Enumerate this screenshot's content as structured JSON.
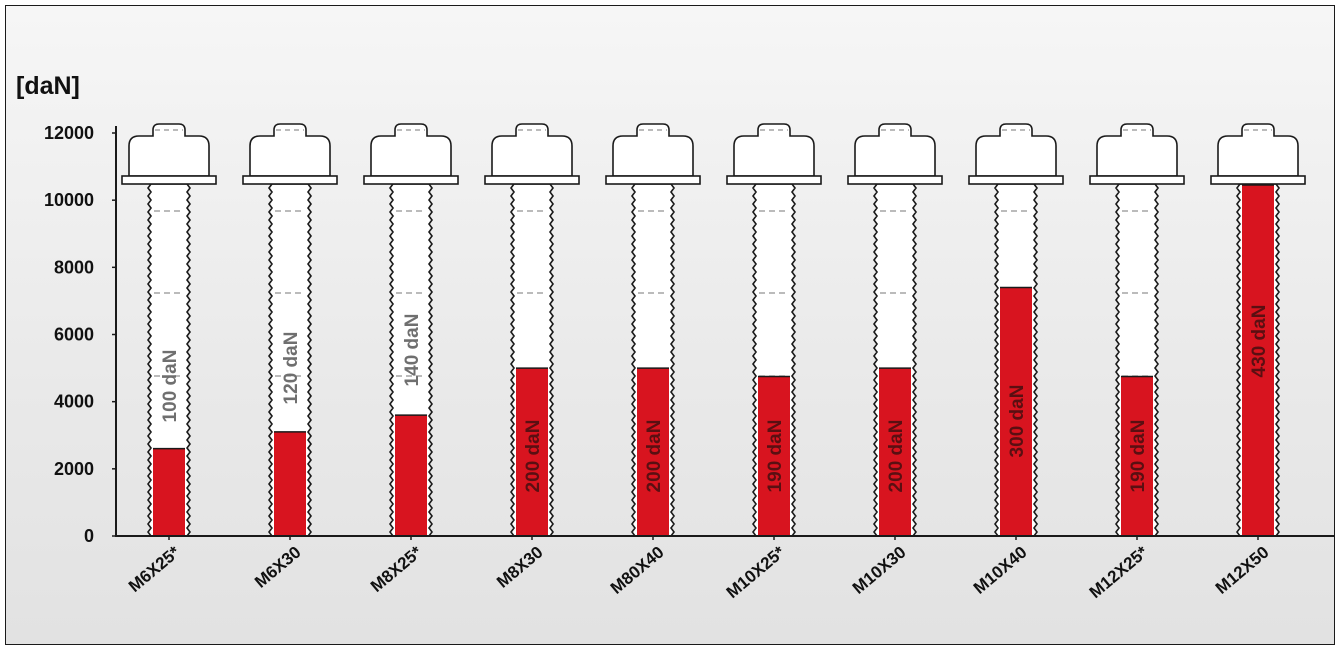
{
  "chart_data": {
    "type": "bar",
    "ylabel": "[daN]",
    "ylim": [
      0,
      12000
    ],
    "yticks": [
      "0",
      "2000",
      "4000",
      "6000",
      "8000",
      "10000",
      "12000"
    ],
    "categories": [
      "M6X25*",
      "M6X30",
      "M8X25*",
      "M8X30",
      "M80X40",
      "M10X25*",
      "M10X30",
      "M10X40",
      "M12X25*",
      "M12X50"
    ],
    "values": [
      2600,
      3100,
      3600,
      5000,
      5000,
      4750,
      5000,
      7400,
      4750,
      10500
    ],
    "value_labels": [
      "100 daN",
      "120 daN",
      "140 daN",
      "200 daN",
      "200 daN",
      "190 daN",
      "200 daN",
      "300 daN",
      "190 daN",
      "430 daN"
    ],
    "grid": false
  },
  "colors": {
    "bar_fill": "#d8141f",
    "bolt_body": "#ffffff",
    "outline": "#1a1a1a",
    "label_on_white": "#6f6f6f",
    "label_on_red": "#5a0f12"
  }
}
